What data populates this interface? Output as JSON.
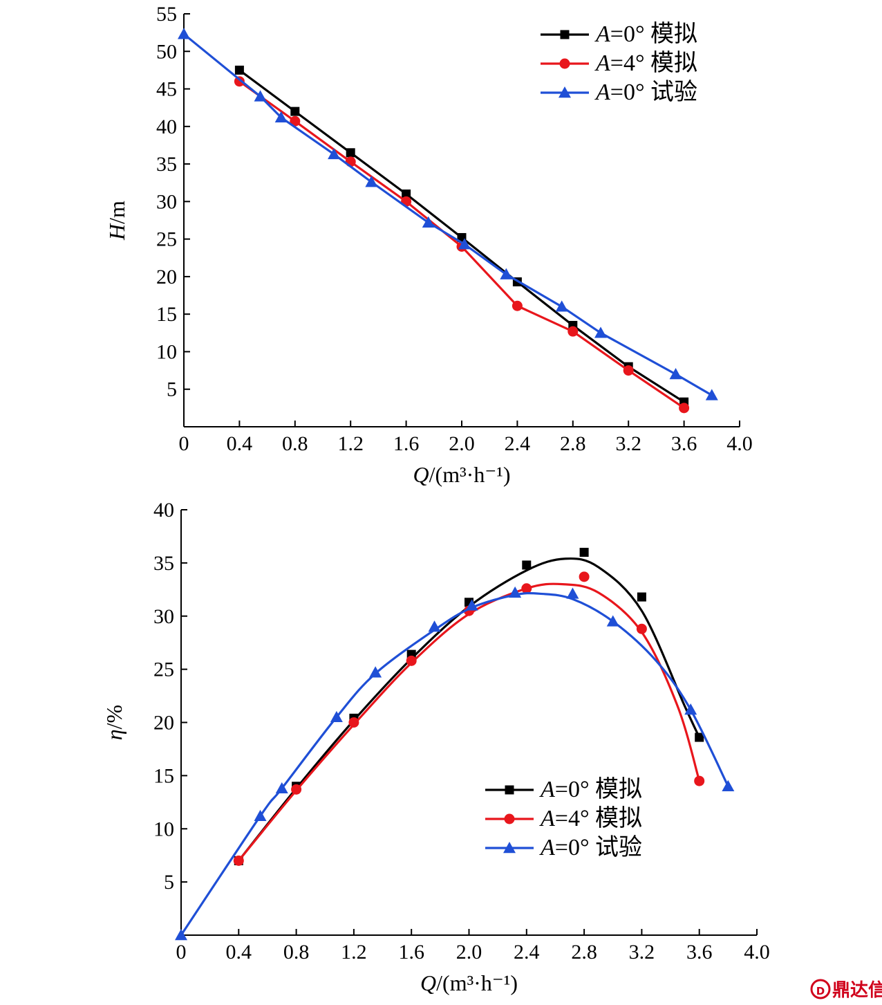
{
  "chart_data": [
    {
      "id": "head",
      "type": "line",
      "xlabel": "Q/(m³·h⁻¹)",
      "ylabel": "H/m",
      "xlim": [
        0,
        4.0
      ],
      "ylim": [
        0,
        55
      ],
      "xticks": [
        "0",
        "0.4",
        "0.8",
        "1.2",
        "1.6",
        "2.0",
        "2.4",
        "2.8",
        "3.2",
        "3.6",
        "4.0"
      ],
      "yticks": [
        "5",
        "10",
        "15",
        "20",
        "25",
        "30",
        "35",
        "40",
        "45",
        "50",
        "55"
      ],
      "legend_position": "top-right",
      "series": [
        {
          "name": "A=0° 模拟",
          "color": "#000000",
          "marker": "square",
          "points": [
            [
              0.4,
              47.5
            ],
            [
              0.8,
              42.0
            ],
            [
              1.2,
              36.5
            ],
            [
              1.6,
              31.0
            ],
            [
              2.0,
              25.2
            ],
            [
              2.4,
              19.3
            ],
            [
              2.8,
              13.5
            ],
            [
              3.2,
              8.0
            ],
            [
              3.6,
              3.3
            ]
          ]
        },
        {
          "name": "A=4° 模拟",
          "color": "#e8161c",
          "marker": "circle",
          "points": [
            [
              0.4,
              46.0
            ],
            [
              0.8,
              40.7
            ],
            [
              1.2,
              35.3
            ],
            [
              1.6,
              30.0
            ],
            [
              2.0,
              24.0
            ],
            [
              2.4,
              16.1
            ],
            [
              2.8,
              12.7
            ],
            [
              3.2,
              7.5
            ],
            [
              3.6,
              2.5
            ]
          ]
        },
        {
          "name": "A=0° 试验",
          "color": "#1f4fd6",
          "marker": "triangle",
          "points": [
            [
              0,
              52.3
            ],
            [
              0.55,
              44.0
            ],
            [
              0.7,
              41.2
            ],
            [
              1.08,
              36.3
            ],
            [
              1.35,
              32.6
            ],
            [
              1.76,
              27.2
            ],
            [
              2.02,
              24.3
            ],
            [
              2.32,
              20.3
            ],
            [
              2.72,
              16.0
            ],
            [
              3.0,
              12.5
            ],
            [
              3.54,
              7.0
            ],
            [
              3.8,
              4.2
            ]
          ]
        }
      ]
    },
    {
      "id": "efficiency",
      "type": "line",
      "xlabel": "Q/(m³·h⁻¹)",
      "ylabel": "η/%",
      "xlim": [
        0,
        4.0
      ],
      "ylim": [
        0,
        40
      ],
      "xticks": [
        "0",
        "0.4",
        "0.8",
        "1.2",
        "1.6",
        "2.0",
        "2.4",
        "2.8",
        "3.2",
        "3.6",
        "4.0"
      ],
      "yticks": [
        "5",
        "10",
        "15",
        "20",
        "25",
        "30",
        "35",
        "40"
      ],
      "legend_position": "bottom-right",
      "series": [
        {
          "name": "A=0° 模拟",
          "color": "#000000",
          "marker": "square",
          "points": [
            [
              0.4,
              7.0
            ],
            [
              0.8,
              14.0
            ],
            [
              1.2,
              20.4
            ],
            [
              1.6,
              26.4
            ],
            [
              2.0,
              31.3
            ],
            [
              2.4,
              34.8
            ],
            [
              2.8,
              36.0
            ],
            [
              3.2,
              31.8
            ],
            [
              3.6,
              18.6
            ]
          ],
          "curve": [
            [
              0.4,
              7.0
            ],
            [
              0.8,
              13.8
            ],
            [
              1.2,
              20.2
            ],
            [
              1.6,
              26.0
            ],
            [
              2.0,
              30.9
            ],
            [
              2.4,
              34.3
            ],
            [
              2.67,
              35.4
            ],
            [
              2.9,
              34.6
            ],
            [
              3.2,
              30.5
            ],
            [
              3.5,
              21.5
            ],
            [
              3.6,
              18.6
            ]
          ]
        },
        {
          "name": "A=4° 模拟",
          "color": "#e8161c",
          "marker": "circle",
          "points": [
            [
              0.4,
              7.0
            ],
            [
              0.8,
              13.7
            ],
            [
              1.2,
              20.0
            ],
            [
              1.6,
              25.8
            ],
            [
              2.0,
              30.5
            ],
            [
              2.4,
              32.6
            ],
            [
              2.8,
              33.7
            ],
            [
              3.2,
              28.8
            ],
            [
              3.6,
              14.5
            ]
          ],
          "curve": [
            [
              0.4,
              7.0
            ],
            [
              0.8,
              13.6
            ],
            [
              1.2,
              19.8
            ],
            [
              1.6,
              25.6
            ],
            [
              2.0,
              30.2
            ],
            [
              2.4,
              32.6
            ],
            [
              2.65,
              33.0
            ],
            [
              2.9,
              32.2
            ],
            [
              3.2,
              28.5
            ],
            [
              3.45,
              21.5
            ],
            [
              3.6,
              14.5
            ]
          ]
        },
        {
          "name": "A=0° 试验",
          "color": "#1f4fd6",
          "marker": "triangle",
          "points": [
            [
              0,
              0
            ],
            [
              0.55,
              11.2
            ],
            [
              0.7,
              13.8
            ],
            [
              1.08,
              20.5
            ],
            [
              1.35,
              24.7
            ],
            [
              1.76,
              29.0
            ],
            [
              2.02,
              31.0
            ],
            [
              2.32,
              32.2
            ],
            [
              2.72,
              32.1
            ],
            [
              3.0,
              29.5
            ],
            [
              3.54,
              21.2
            ],
            [
              3.8,
              14.0
            ]
          ],
          "curve": [
            [
              0,
              0
            ],
            [
              0.55,
              11.2
            ],
            [
              0.7,
              13.8
            ],
            [
              1.08,
              20.5
            ],
            [
              1.35,
              24.6
            ],
            [
              1.76,
              28.7
            ],
            [
              2.02,
              30.8
            ],
            [
              2.32,
              32.0
            ],
            [
              2.5,
              32.1
            ],
            [
              2.72,
              31.6
            ],
            [
              3.0,
              29.5
            ],
            [
              3.3,
              25.8
            ],
            [
              3.54,
              21.2
            ],
            [
              3.8,
              14.0
            ]
          ]
        }
      ]
    }
  ],
  "watermark": {
    "text": "鼎达信",
    "icon": "dx-logo-icon"
  }
}
